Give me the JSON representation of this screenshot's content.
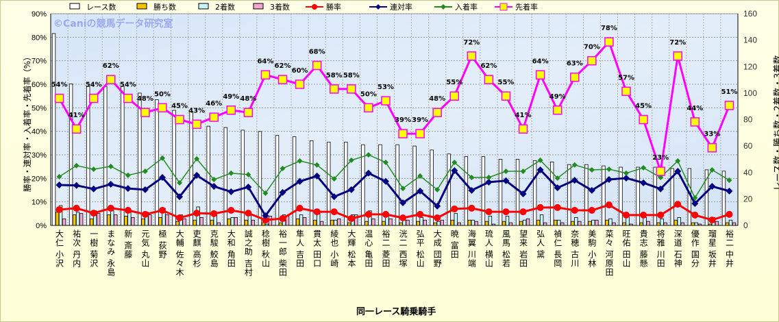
{
  "chart_data": {
    "type": "bar+line",
    "title": "",
    "watermark": "©Caniの競馬データ研究室",
    "xlabel": "同一レース騎乗騎手",
    "ylabel_left": "勝率・連対率・入着率・先着率（%）",
    "ylabel_right": "レース数・勝ち数・2着数・3着数",
    "ylim_left": [
      0,
      90
    ],
    "ylim_right": [
      0,
      160
    ],
    "yticks_left": [
      "0%",
      "10%",
      "20%",
      "30%",
      "40%",
      "50%",
      "60%",
      "70%",
      "80%",
      "90%"
    ],
    "yticks_right": [
      "0",
      "20",
      "40",
      "60",
      "80",
      "100",
      "120",
      "140",
      "160"
    ],
    "grid": true,
    "legend_position": "top",
    "legend": [
      "レース数",
      "勝ち数",
      "2着数",
      "3着数",
      "勝率",
      "連対率",
      "入着率",
      "先着率"
    ],
    "categories": [
      "小沢 大仁",
      "丹内 祐次",
      "菊沢 一樹",
      "永島 まなみ",
      "斎藤 新",
      "丸山 元気",
      "荻野 極",
      "佐々木 大輔",
      "高杉 吏麒",
      "鮫島 克駿",
      "角田 大和",
      "吉村 誠之助",
      "秋山 稔樹",
      "柴田 裕一郎",
      "吉田 隼人",
      "田口 貫太",
      "小崎 綾也",
      "松本 大輝",
      "亀田 温心",
      "菱田 裕二",
      "西塚 洸二",
      "松山 弘平",
      "団野 大成",
      "富田 暁",
      "川端 海翼",
      "横山 琉人",
      "松若 風馬",
      "岩田 望来",
      "黛 弘人",
      "長岡 禎仁",
      "古川 奈穂",
      "小林 美駒",
      "河原田 菜々",
      "田山 旺佑",
      "藤懸 貴志",
      "川田 将雅",
      "石神 深道",
      "国分 優作",
      "坂井 瑠星",
      "中井 裕二"
    ],
    "bar_series": [
      {
        "name": "レース数",
        "axis": "right",
        "color": "#ffffff",
        "values": [
          145,
          107,
          105,
          105,
          105,
          100,
          95,
          87,
          86,
          75,
          74,
          72,
          71,
          68,
          67,
          64,
          63,
          63,
          61,
          61,
          61,
          60,
          57,
          54,
          52,
          52,
          50,
          50,
          49,
          48,
          46,
          46,
          45,
          44,
          44,
          44,
          43,
          43,
          42,
          41
        ]
      },
      {
        "name": "勝ち数",
        "axis": "right",
        "color": "#f5c400",
        "values": [
          10,
          8,
          5,
          8,
          7,
          5,
          6,
          3,
          4,
          4,
          5,
          4,
          2,
          2,
          5,
          4,
          4,
          2,
          3,
          3,
          2,
          3,
          2,
          4,
          4,
          3,
          3,
          3,
          4,
          4,
          3,
          3,
          4,
          2,
          2,
          2,
          4,
          2,
          1,
          2
        ]
      },
      {
        "name": "2着数",
        "axis": "right",
        "color": "#c8f4f8",
        "values": [
          15,
          10,
          11,
          11,
          10,
          10,
          13,
          8,
          14,
          9,
          6,
          8,
          1,
          8,
          8,
          10,
          4,
          8,
          11,
          9,
          4,
          6,
          3,
          9,
          4,
          7,
          7,
          4,
          8,
          4,
          6,
          4,
          5,
          7,
          6,
          5,
          6,
          2,
          6,
          4
        ]
      },
      {
        "name": "3着数",
        "axis": "right",
        "color": "#f4a8d0",
        "values": [
          5,
          9,
          9,
          8,
          6,
          8,
          8,
          5,
          6,
          2,
          6,
          4,
          7,
          7,
          6,
          3,
          5,
          8,
          5,
          5,
          4,
          4,
          4,
          2,
          3,
          1,
          2,
          5,
          2,
          2,
          3,
          4,
          2,
          1,
          3,
          2,
          2,
          1,
          3,
          2
        ]
      }
    ],
    "line_series": [
      {
        "name": "勝率",
        "axis": "left",
        "color": "#ff0000",
        "marker": "circle",
        "values": [
          6.7,
          7.3,
          5.2,
          7.3,
          6.4,
          4.7,
          6.4,
          3.2,
          5.2,
          5.0,
          6.4,
          5.2,
          2.3,
          2.9,
          7.3,
          5.8,
          5.8,
          2.9,
          4.7,
          4.7,
          3.2,
          4.7,
          3.2,
          7.0,
          7.3,
          5.8,
          5.8,
          5.8,
          7.6,
          7.6,
          6.4,
          6.4,
          8.7,
          4.4,
          4.4,
          4.4,
          9.0,
          4.4,
          2.3,
          4.7
        ]
      },
      {
        "name": "連対率",
        "axis": "left",
        "color": "#000080",
        "marker": "diamond",
        "values": [
          17.2,
          17.0,
          15.5,
          17.5,
          15.7,
          15.2,
          20.4,
          12.2,
          21.3,
          16.6,
          14.3,
          16.3,
          4.1,
          14.0,
          18.7,
          21.0,
          12.2,
          15.2,
          22.2,
          18.7,
          9.6,
          14.6,
          8.2,
          23.3,
          14.9,
          18.4,
          19.0,
          13.4,
          23.6,
          16.0,
          19.2,
          14.9,
          19.5,
          20.1,
          18.1,
          15.5,
          23.0,
          9.3,
          16.6,
          14.6
        ]
      },
      {
        "name": "入着率",
        "axis": "left",
        "color": "#228b22",
        "marker": "small-diamond",
        "values": [
          20.7,
          25.4,
          23.9,
          25.1,
          21.3,
          23.0,
          28.6,
          18.1,
          28.3,
          19.5,
          22.2,
          21.6,
          13.7,
          24.2,
          27.4,
          25.7,
          19.8,
          27.7,
          30.0,
          26.8,
          15.7,
          21.0,
          15.2,
          26.8,
          20.4,
          20.4,
          23.0,
          23.0,
          27.7,
          20.1,
          25.7,
          23.6,
          23.9,
          22.2,
          24.5,
          20.4,
          27.4,
          11.7,
          23.6,
          19.2
        ]
      },
      {
        "name": "先着率",
        "axis": "left",
        "color": "#ff00ff",
        "marker": "square",
        "values": [
          54,
          41,
          54,
          62,
          54,
          48,
          50,
          45,
          43,
          46,
          49,
          48,
          64,
          62,
          60,
          68,
          58,
          58,
          50,
          53,
          39,
          39,
          48,
          55,
          72,
          62,
          55,
          41,
          64,
          49,
          63,
          70,
          78,
          57,
          45,
          23,
          72,
          44,
          33,
          51
        ],
        "labels": [
          "54%",
          "41%",
          "54%",
          "62%",
          "54%",
          "48%",
          "50%",
          "45%",
          "43%",
          "46%",
          "49%",
          "48%",
          "64%",
          "62%",
          "60%",
          "68%",
          "58%",
          "58%",
          "50%",
          "53%",
          "39%",
          "39%",
          "48%",
          "55%",
          "72%",
          "62%",
          "55%",
          "41%",
          "64%",
          "49%",
          "63%",
          "70%",
          "78%",
          "57%",
          "45%",
          "23%",
          "72%",
          "44%",
          "33%",
          "51%"
        ]
      }
    ]
  }
}
